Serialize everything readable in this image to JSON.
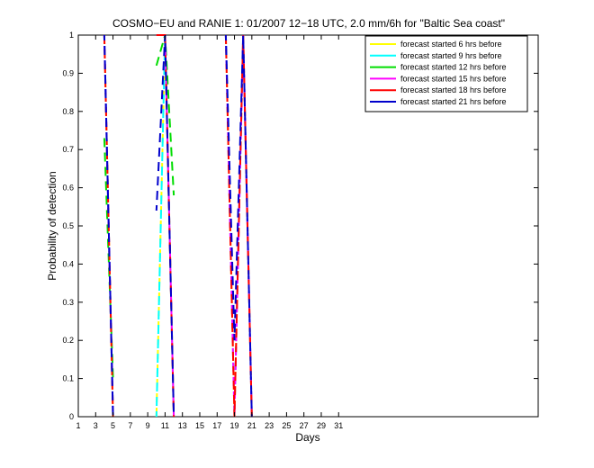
{
  "chart_data": {
    "type": "line",
    "title": "COSMO−EU and RANIE 1: 01/2007 12−18 UTC, 2.0 mm/6h for \"Baltic Sea coast\"",
    "xlabel": "Days",
    "ylabel": "Probability of detection",
    "xlim": [
      1,
      54
    ],
    "ylim": [
      0,
      1
    ],
    "xticks": [
      1,
      3,
      5,
      7,
      9,
      11,
      13,
      15,
      17,
      19,
      21,
      23,
      25,
      27,
      29,
      31
    ],
    "yticks": [
      0,
      0.1,
      0.2,
      0.3,
      0.4,
      0.5,
      0.6,
      0.7,
      0.8,
      0.9,
      1
    ],
    "ytick_labels": [
      "0",
      "0.1",
      "0.2",
      "0.3",
      "0.4",
      "0.5",
      "0.6",
      "0.7",
      "0.8",
      "0.9",
      "1"
    ],
    "legend_position": "top-right",
    "grid": false,
    "series": [
      {
        "name": "forecast started 6 hrs before",
        "color": "#ffff00",
        "segments": [
          [
            [
              4,
              1
            ],
            [
              5,
              0
            ]
          ],
          [
            [
              10,
              0
            ],
            [
              11,
              1
            ],
            [
              12,
              0
            ]
          ],
          [
            [
              18,
              1
            ],
            [
              19,
              0
            ],
            [
              20,
              1
            ],
            [
              21,
              0
            ]
          ]
        ]
      },
      {
        "name": "forecast started 9 hrs before",
        "color": "#00ffff",
        "segments": [
          [
            [
              4,
              1
            ],
            [
              5,
              0
            ]
          ],
          [
            [
              10,
              0
            ],
            [
              11,
              1
            ],
            [
              12,
              0
            ]
          ],
          [
            [
              18,
              1
            ],
            [
              19,
              0
            ],
            [
              20,
              1
            ],
            [
              21,
              0
            ]
          ]
        ]
      },
      {
        "name": "forecast started 12 hrs before",
        "color": "#00dd00",
        "segments": [
          [
            [
              4,
              0.73
            ],
            [
              5,
              0.1
            ]
          ],
          [
            [
              10,
              0.92
            ],
            [
              11,
              1
            ],
            [
              12,
              0.58
            ]
          ]
        ]
      },
      {
        "name": "forecast started 15 hrs before",
        "color": "#ff00ff",
        "segments": [
          [
            [
              4,
              1
            ],
            [
              5,
              0
            ]
          ],
          [
            [
              10,
              1
            ],
            [
              11,
              1
            ],
            [
              12,
              0
            ]
          ],
          [
            [
              18,
              1
            ],
            [
              19,
              0
            ],
            [
              20,
              1
            ],
            [
              21,
              0
            ]
          ]
        ]
      },
      {
        "name": "forecast started 18 hrs before",
        "color": "#ff0000",
        "segments": [
          [
            [
              4,
              1
            ],
            [
              5,
              0
            ]
          ],
          [
            [
              10,
              1
            ],
            [
              11,
              1
            ],
            [
              12,
              0
            ]
          ],
          [
            [
              18,
              1
            ],
            [
              19,
              0
            ],
            [
              20,
              1
            ],
            [
              21,
              0
            ]
          ]
        ]
      },
      {
        "name": "forecast started 21 hrs before",
        "color": "#0000cc",
        "segments": [
          [
            [
              4,
              1
            ],
            [
              5,
              0
            ]
          ],
          [
            [
              10,
              0.54
            ],
            [
              11,
              1
            ],
            [
              12,
              0
            ]
          ],
          [
            [
              18,
              1
            ],
            [
              19,
              0.2
            ],
            [
              20,
              1
            ],
            [
              21,
              0
            ]
          ]
        ]
      }
    ]
  }
}
